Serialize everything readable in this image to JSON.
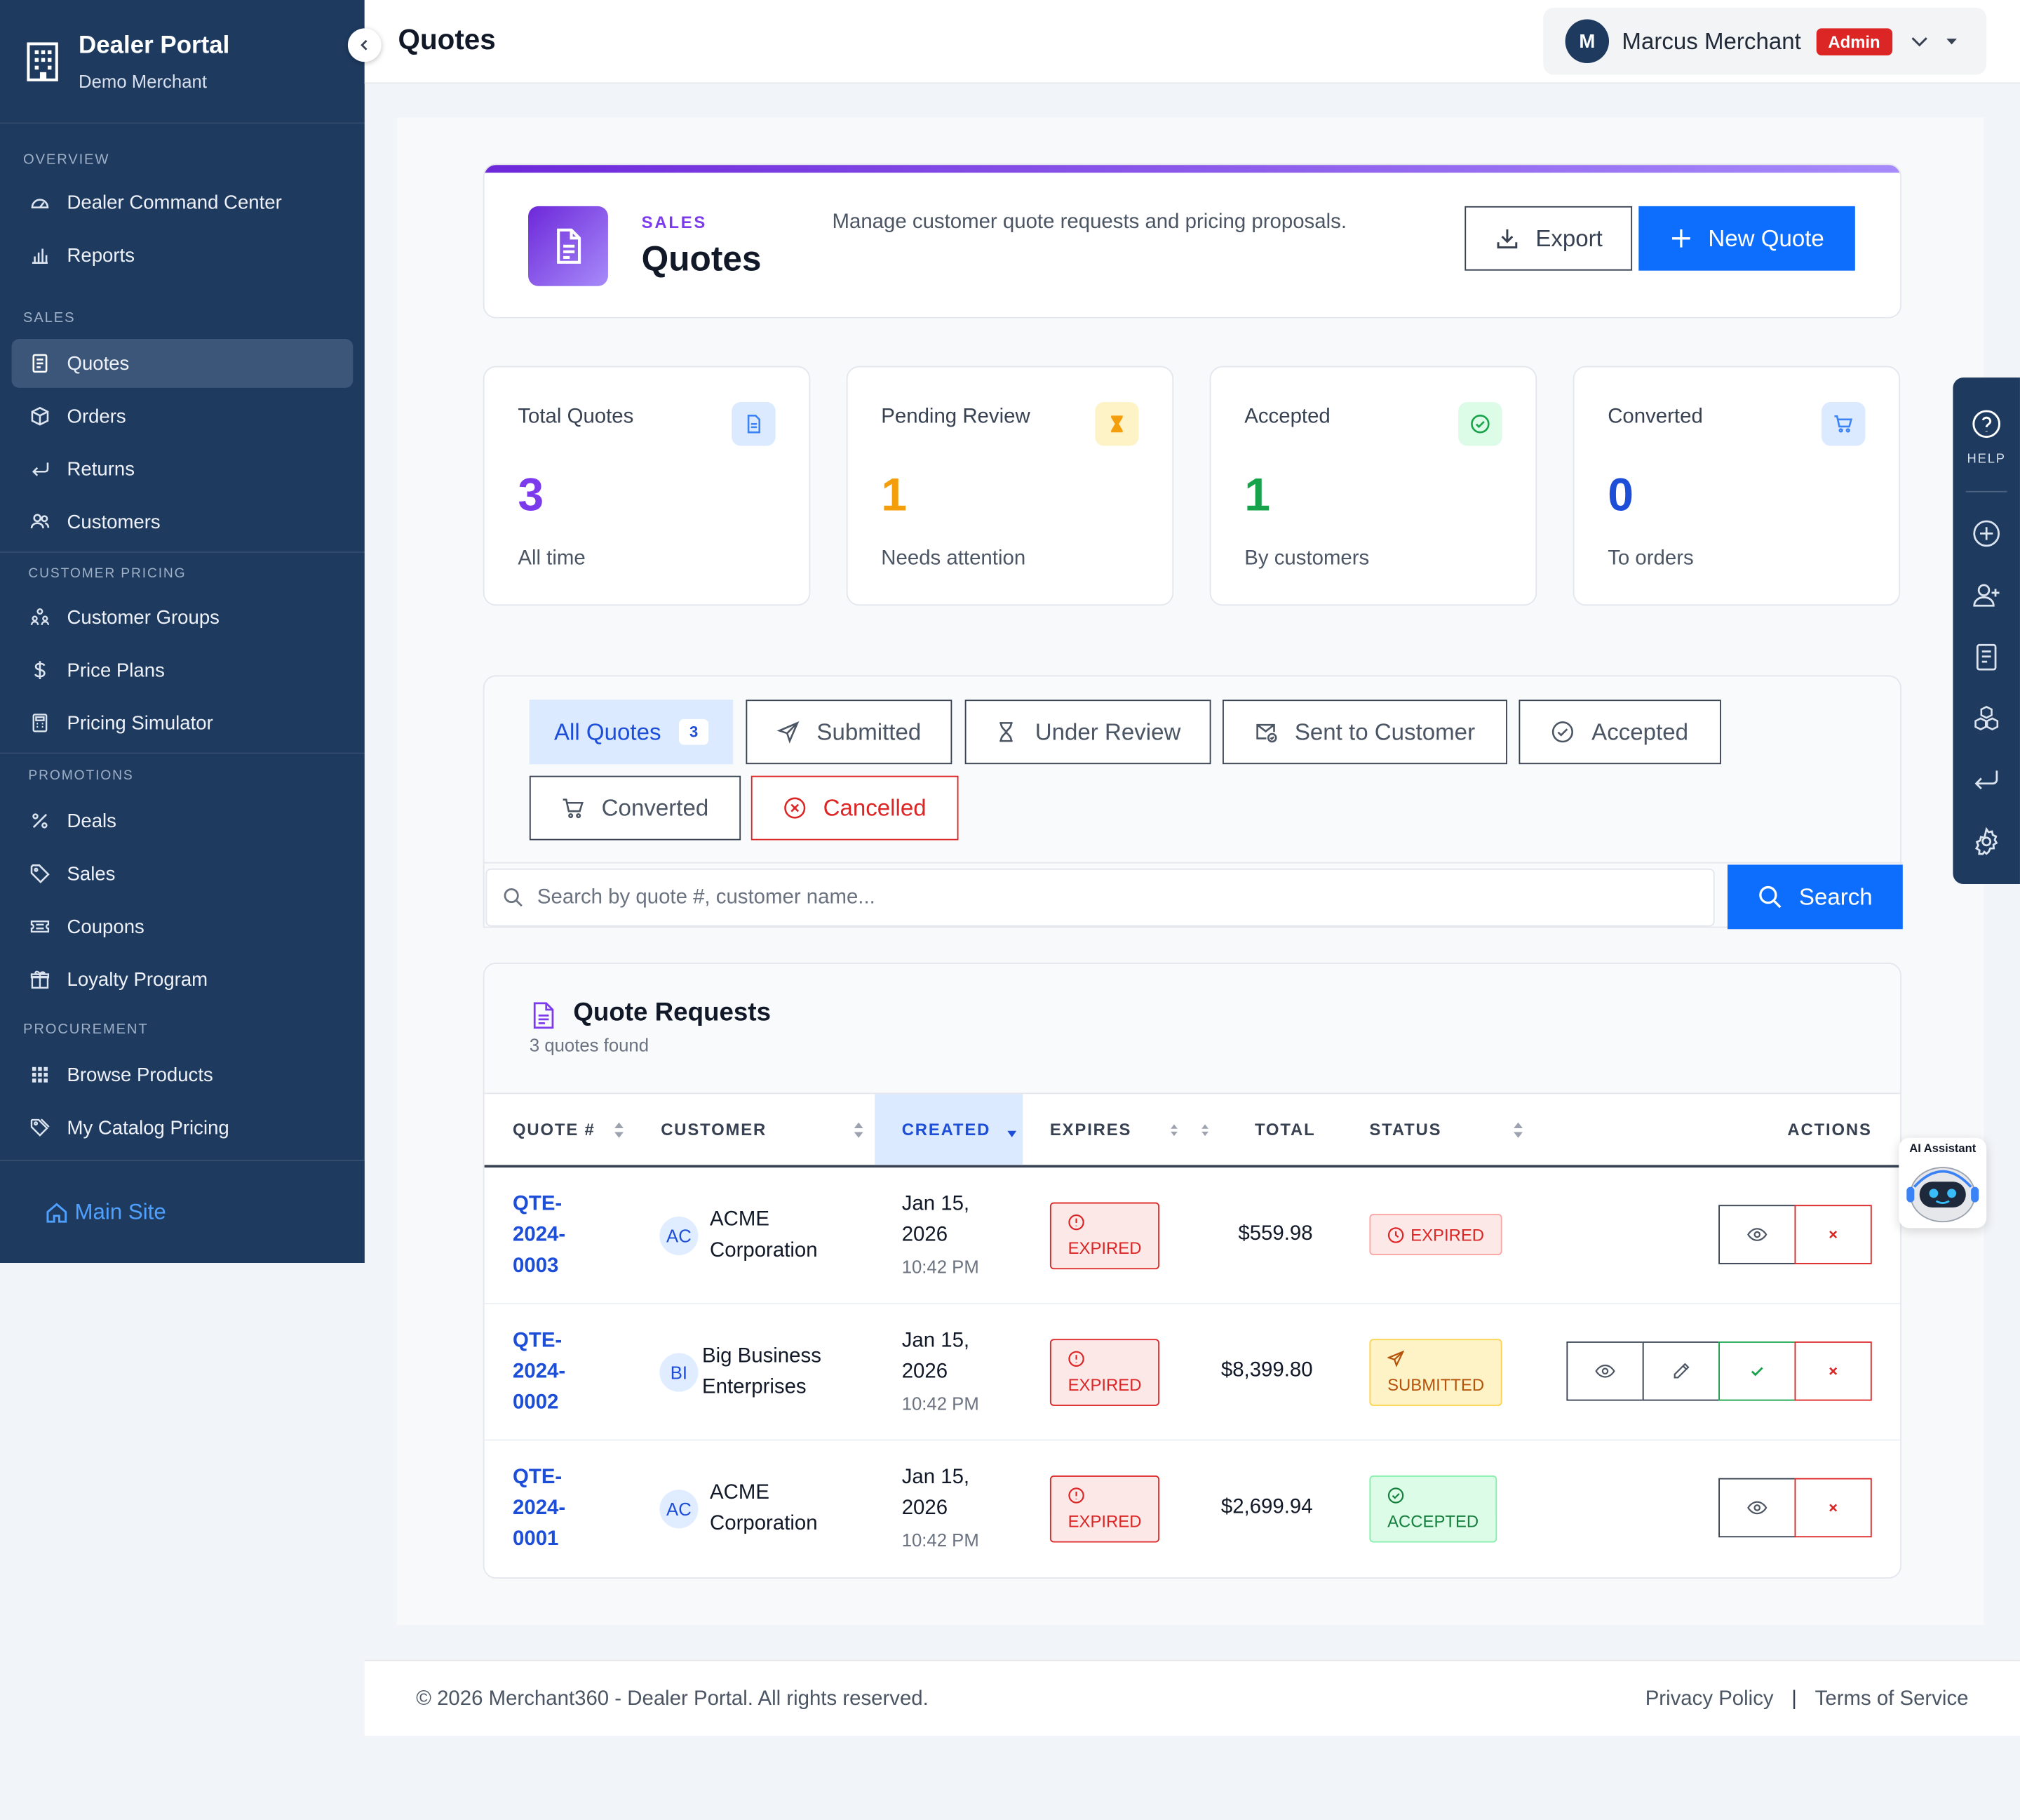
{
  "sidebar": {
    "brand_title": "Dealer Portal",
    "brand_subtitle": "Demo Merchant",
    "sections": {
      "overview": "OVERVIEW",
      "sales": "SALES",
      "customer_pricing": "CUSTOMER PRICING",
      "promotions": "PROMOTIONS",
      "procurement": "PROCUREMENT"
    },
    "items": {
      "command_center": "Dealer Command Center",
      "reports": "Reports",
      "quotes": "Quotes",
      "orders": "Orders",
      "returns": "Returns",
      "customers": "Customers",
      "customer_groups": "Customer Groups",
      "price_plans": "Price Plans",
      "pricing_simulator": "Pricing Simulator",
      "deals": "Deals",
      "sales": "Sales",
      "coupons": "Coupons",
      "loyalty": "Loyalty Program",
      "browse_products": "Browse Products",
      "catalog_pricing": "My Catalog Pricing"
    },
    "main_site": "Main Site"
  },
  "header": {
    "title": "Quotes",
    "user": {
      "initial": "M",
      "name": "Marcus Merchant",
      "role": "Admin"
    }
  },
  "hero": {
    "kicker": "SALES",
    "title": "Quotes",
    "description": "Manage customer quote requests and pricing proposals.",
    "export_label": "Export",
    "new_label": "New Quote"
  },
  "stats": [
    {
      "label": "Total Quotes",
      "value": "3",
      "sub": "All time",
      "color": "#7c3aed"
    },
    {
      "label": "Pending Review",
      "value": "1",
      "sub": "Needs attention",
      "color": "#f59e0b"
    },
    {
      "label": "Accepted",
      "value": "1",
      "sub": "By customers",
      "color": "#16a34a"
    },
    {
      "label": "Converted",
      "value": "0",
      "sub": "To orders",
      "color": "#1d4ed8"
    }
  ],
  "filters": {
    "all": "All Quotes",
    "all_count": "3",
    "submitted": "Submitted",
    "under_review": "Under Review",
    "sent": "Sent to Customer",
    "accepted": "Accepted",
    "converted": "Converted",
    "cancelled": "Cancelled"
  },
  "search": {
    "placeholder": "Search by quote #, customer name...",
    "button": "Search"
  },
  "table": {
    "title": "Quote Requests",
    "subtitle": "3 quotes found",
    "columns": {
      "quote": "QUOTE #",
      "customer": "CUSTOMER",
      "created": "CREATED",
      "expires": "EXPIRES",
      "total": "TOTAL",
      "status": "STATUS",
      "actions": "ACTIONS"
    },
    "rows": [
      {
        "quote": [
          "QTE-",
          "2024-",
          "0003"
        ],
        "initials": "AC",
        "customer": [
          "ACME",
          "Corporation"
        ],
        "created": [
          "Jan 15,",
          "2026"
        ],
        "time": "10:42 PM",
        "expires": "EXPIRED",
        "total": "$559.98",
        "status": "EXPIRED"
      },
      {
        "quote": [
          "QTE-",
          "2024-",
          "0002"
        ],
        "initials": "BI",
        "customer": [
          "Big Business",
          "Enterprises"
        ],
        "created": [
          "Jan 15,",
          "2026"
        ],
        "time": "10:42 PM",
        "expires": "EXPIRED",
        "total": "$8,399.80",
        "status": "SUBMITTED"
      },
      {
        "quote": [
          "QTE-",
          "2024-",
          "0001"
        ],
        "initials": "AC",
        "customer": [
          "ACME",
          "Corporation"
        ],
        "created": [
          "Jan 15,",
          "2026"
        ],
        "time": "10:42 PM",
        "expires": "EXPIRED",
        "total": "$2,699.94",
        "status": "ACCEPTED"
      }
    ]
  },
  "footer": {
    "copyright": "© 2026 Merchant360 - Dealer Portal. All rights reserved.",
    "privacy": "Privacy Policy",
    "sep": "|",
    "terms": "Terms of Service"
  },
  "tools": {
    "help": "HELP"
  },
  "ai": {
    "label": "AI Assistant"
  }
}
